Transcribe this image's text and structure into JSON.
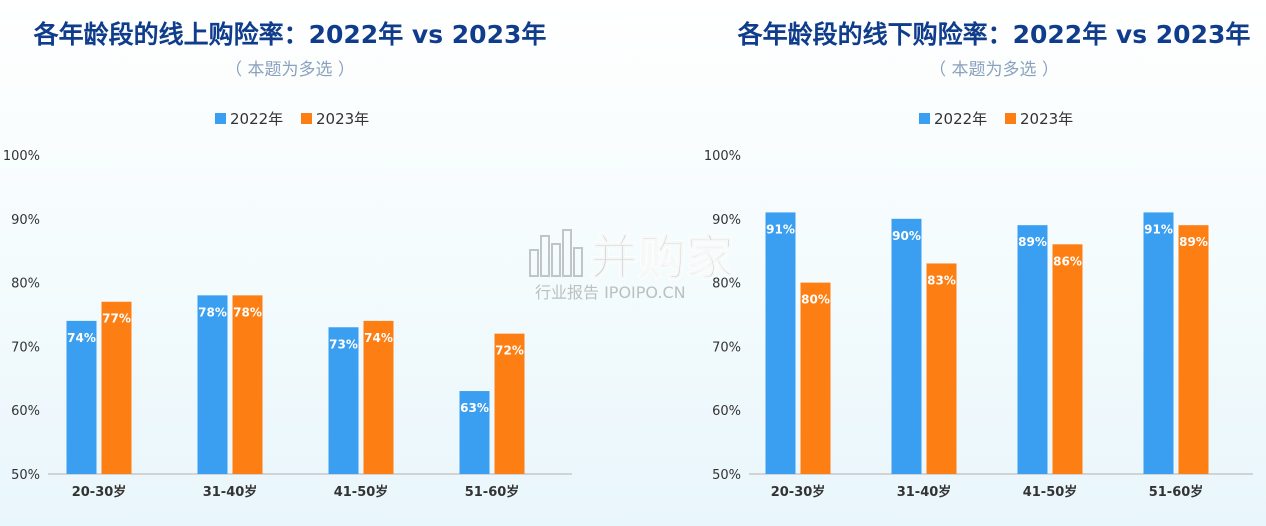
{
  "colors": {
    "y2022": "#3a9ff0",
    "y2023": "#fd7f13",
    "title": "#0f3d8c",
    "axis": "#bfbfbf"
  },
  "watermark": {
    "brand": "并购家",
    "tagline": "行业报告 IPOIPO.CN"
  },
  "chart_data": [
    {
      "type": "bar",
      "title": "各年龄段的线上购险率：2022年 vs 2023年",
      "subtitle": "（ 本题为多选 ）",
      "categories": [
        "20-30岁",
        "31-40岁",
        "41-50岁",
        "51-60岁"
      ],
      "series": [
        {
          "name": "2022年",
          "values": [
            74,
            78,
            73,
            63
          ],
          "labels": [
            "74%",
            "78%",
            "73%",
            "63%"
          ]
        },
        {
          "name": "2023年",
          "values": [
            77,
            78,
            74,
            72
          ],
          "labels": [
            "77%",
            "78%",
            "74%",
            "72%"
          ]
        }
      ],
      "yticks": [
        "50%",
        "60%",
        "70%",
        "80%",
        "90%",
        "100%"
      ],
      "ylim": [
        50,
        100
      ],
      "legend": "top-center",
      "grid": false
    },
    {
      "type": "bar",
      "title": "各年龄段的线下购险率：2022年 vs 2023年",
      "subtitle": "（ 本题为多选 ）",
      "categories": [
        "20-30岁",
        "31-40岁",
        "41-50岁",
        "51-60岁"
      ],
      "series": [
        {
          "name": "2022年",
          "values": [
            91,
            90,
            89,
            91
          ],
          "labels": [
            "91%",
            "90%",
            "89%",
            "91%"
          ]
        },
        {
          "name": "2023年",
          "values": [
            80,
            83,
            86,
            89
          ],
          "labels": [
            "80%",
            "83%",
            "86%",
            "89%"
          ]
        }
      ],
      "yticks": [
        "50%",
        "60%",
        "70%",
        "80%",
        "90%",
        "100%"
      ],
      "ylim": [
        50,
        100
      ],
      "legend": "top-center",
      "grid": false
    }
  ]
}
